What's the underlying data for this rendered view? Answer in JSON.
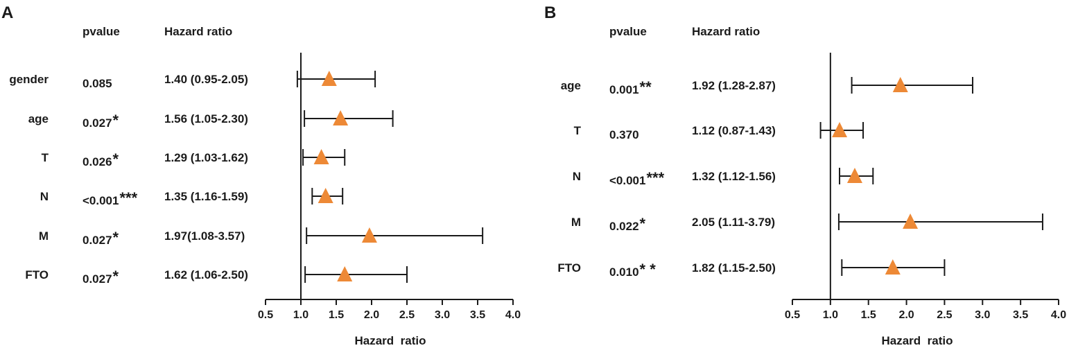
{
  "chart_data": [
    {
      "type": "forest",
      "panel": "A",
      "col_pvalue": "pvalue",
      "col_hr": "Hazard ratio",
      "xlabel": "Hazard  ratio",
      "xlim": [
        0.5,
        4.0
      ],
      "xticks": [
        "0.5",
        "1.0",
        "1.5",
        "2.0",
        "2.5",
        "3.0",
        "3.5",
        "4.0"
      ],
      "reference_line": 1.0,
      "marker_color": "#ED8936",
      "rows": [
        {
          "label": "gender",
          "p": "0.085",
          "sig": "",
          "hr_text": "1.40 (0.95-2.05)",
          "hr": 1.4,
          "lo": 0.95,
          "hi": 2.05
        },
        {
          "label": "age",
          "p": "0.027",
          "sig": "*",
          "hr_text": "1.56 (1.05-2.30)",
          "hr": 1.56,
          "lo": 1.05,
          "hi": 2.3
        },
        {
          "label": "T",
          "p": "0.026",
          "sig": "*",
          "hr_text": "1.29 (1.03-1.62)",
          "hr": 1.29,
          "lo": 1.03,
          "hi": 1.62
        },
        {
          "label": "N",
          "p": "<0.001",
          "sig": "***",
          "hr_text": "1.35 (1.16-1.59)",
          "hr": 1.35,
          "lo": 1.16,
          "hi": 1.59
        },
        {
          "label": "M",
          "p": "0.027",
          "sig": "*",
          "hr_text": "1.97(1.08-3.57)",
          "hr": 1.97,
          "lo": 1.08,
          "hi": 3.57
        },
        {
          "label": "FTO",
          "p": "0.027",
          "sig": "*",
          "hr_text": "1.62 (1.06-2.50)",
          "hr": 1.62,
          "lo": 1.06,
          "hi": 2.5
        }
      ]
    },
    {
      "type": "forest",
      "panel": "B",
      "col_pvalue": "pvalue",
      "col_hr": "Hazard ratio",
      "xlabel": "Hazard  ratio",
      "xlim": [
        0.5,
        4.0
      ],
      "xticks": [
        "0.5",
        "1.0",
        "1.5",
        "2.0",
        "2.5",
        "3.0",
        "3.5",
        "4.0"
      ],
      "reference_line": 1.0,
      "marker_color": "#ED8936",
      "rows": [
        {
          "label": "age",
          "p": "0.001",
          "sig": "**",
          "hr_text": "1.92 (1.28-2.87)",
          "hr": 1.92,
          "lo": 1.28,
          "hi": 2.87
        },
        {
          "label": "T",
          "p": "0.370",
          "sig": "",
          "hr_text": "1.12 (0.87-1.43)",
          "hr": 1.12,
          "lo": 0.87,
          "hi": 1.43
        },
        {
          "label": "N",
          "p": "<0.001",
          "sig": "***",
          "hr_text": "1.32 (1.12-1.56)",
          "hr": 1.32,
          "lo": 1.12,
          "hi": 1.56
        },
        {
          "label": "M",
          "p": "0.022",
          "sig": "*",
          "hr_text": "2.05 (1.11-3.79)",
          "hr": 2.05,
          "lo": 1.11,
          "hi": 3.79
        },
        {
          "label": "FTO",
          "p": "0.010",
          "sig": "* *",
          "hr_text": "1.82 (1.15-2.50)",
          "hr": 1.82,
          "lo": 1.15,
          "hi": 2.5
        }
      ]
    }
  ]
}
